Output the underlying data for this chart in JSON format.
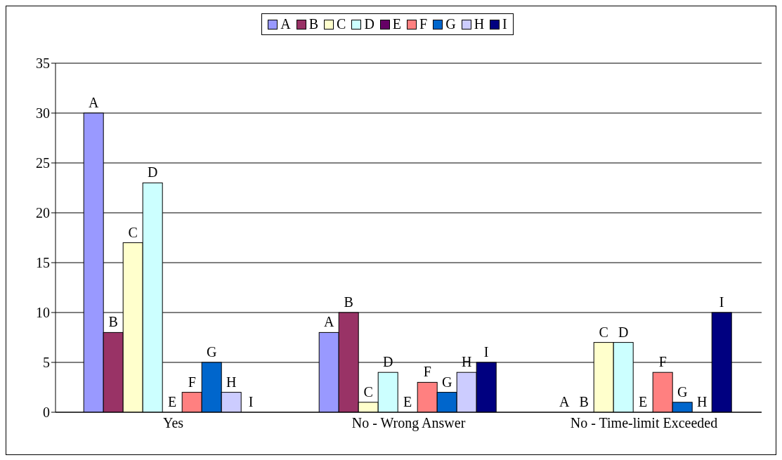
{
  "chart_data": {
    "type": "bar",
    "categories": [
      "Yes",
      "No - Wrong Answer",
      "No - Time-limit Exceeded"
    ],
    "series": [
      {
        "name": "A",
        "color": "#9999ff",
        "values": [
          30,
          8,
          0
        ]
      },
      {
        "name": "B",
        "color": "#993366",
        "values": [
          8,
          10,
          0
        ]
      },
      {
        "name": "C",
        "color": "#ffffcc",
        "values": [
          17,
          1,
          7
        ]
      },
      {
        "name": "D",
        "color": "#ccffff",
        "values": [
          23,
          4,
          7
        ]
      },
      {
        "name": "E",
        "color": "#660066",
        "values": [
          0,
          0,
          0
        ]
      },
      {
        "name": "F",
        "color": "#ff8080",
        "values": [
          2,
          3,
          4
        ]
      },
      {
        "name": "G",
        "color": "#0066cc",
        "values": [
          5,
          2,
          1
        ]
      },
      {
        "name": "H",
        "color": "#ccccff",
        "values": [
          2,
          4,
          0
        ]
      },
      {
        "name": "I",
        "color": "#000080",
        "values": [
          0,
          5,
          10
        ]
      }
    ],
    "ylim": [
      0,
      35
    ],
    "yticks": [
      0,
      5,
      10,
      15,
      20,
      25,
      30,
      35
    ],
    "grid": "y",
    "legend": "top"
  }
}
